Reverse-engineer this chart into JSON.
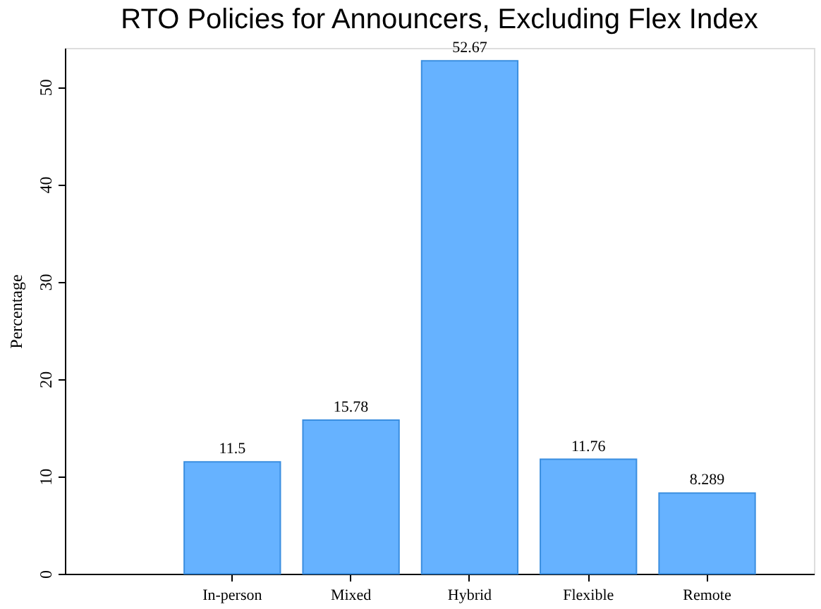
{
  "chart_data": {
    "type": "bar",
    "title": "RTO Policies for Announcers, Excluding Flex Index",
    "ylabel": "Percentage",
    "categories": [
      "In-person",
      "Mixed",
      "Hybrid",
      "Flexible",
      "Remote"
    ],
    "values": [
      11.5,
      15.78,
      52.67,
      11.76,
      8.289
    ],
    "color": "#66b2ff",
    "ylim": [
      0,
      54
    ],
    "yticks": [
      0,
      10,
      20,
      30,
      40,
      50
    ],
    "grid": false,
    "data_labels": true
  }
}
